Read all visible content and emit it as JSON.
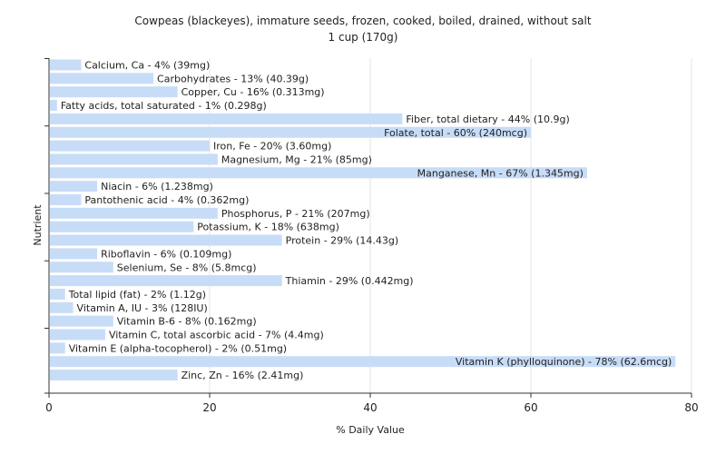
{
  "chart_data": {
    "type": "bar",
    "orientation": "horizontal",
    "title": "Cowpeas (blackeyes), immature seeds, frozen, cooked, boiled, drained, without salt",
    "subtitle": "1 cup (170g)",
    "xlabel": "% Daily Value",
    "ylabel": "Nutrient",
    "xlim": [
      0,
      80
    ],
    "xticks": [
      0,
      20,
      40,
      60,
      80
    ],
    "grid": true,
    "bar_color": "#c7dcf7",
    "categories": [
      "Calcium, Ca",
      "Carbohydrates",
      "Copper, Cu",
      "Fatty acids, total saturated",
      "Fiber, total dietary",
      "Folate, total",
      "Iron, Fe",
      "Magnesium, Mg",
      "Manganese, Mn",
      "Niacin",
      "Pantothenic acid",
      "Phosphorus, P",
      "Potassium, K",
      "Protein",
      "Riboflavin",
      "Selenium, Se",
      "Thiamin",
      "Total lipid (fat)",
      "Vitamin A, IU",
      "Vitamin B-6",
      "Vitamin C, total ascorbic acid",
      "Vitamin E (alpha-tocopherol)",
      "Vitamin K (phylloquinone)",
      "Zinc, Zn"
    ],
    "values": [
      4,
      13,
      16,
      1,
      44,
      60,
      20,
      21,
      67,
      6,
      4,
      21,
      18,
      29,
      6,
      8,
      29,
      2,
      3,
      8,
      7,
      2,
      78,
      16
    ],
    "labels": [
      "Calcium, Ca - 4% (39mg)",
      "Carbohydrates - 13% (40.39g)",
      "Copper, Cu - 16% (0.313mg)",
      "Fatty acids, total saturated - 1% (0.298g)",
      "Fiber, total dietary - 44% (10.9g)",
      "Folate, total - 60% (240mcg)",
      "Iron, Fe - 20% (3.60mg)",
      "Magnesium, Mg - 21% (85mg)",
      "Manganese, Mn - 67% (1.345mg)",
      "Niacin - 6% (1.238mg)",
      "Pantothenic acid - 4% (0.362mg)",
      "Phosphorus, P - 21% (207mg)",
      "Potassium, K - 18% (638mg)",
      "Protein - 29% (14.43g)",
      "Riboflavin - 6% (0.109mg)",
      "Selenium, Se - 8% (5.8mcg)",
      "Thiamin - 29% (0.442mg)",
      "Total lipid (fat) - 2% (1.12g)",
      "Vitamin A, IU - 3% (128IU)",
      "Vitamin B-6 - 8% (0.162mg)",
      "Vitamin C, total ascorbic acid - 7% (4.4mg)",
      "Vitamin E (alpha-tocopherol) - 2% (0.51mg)",
      "Vitamin K (phylloquinone) - 78% (62.6mcg)",
      "Zinc, Zn - 16% (2.41mg)"
    ]
  }
}
